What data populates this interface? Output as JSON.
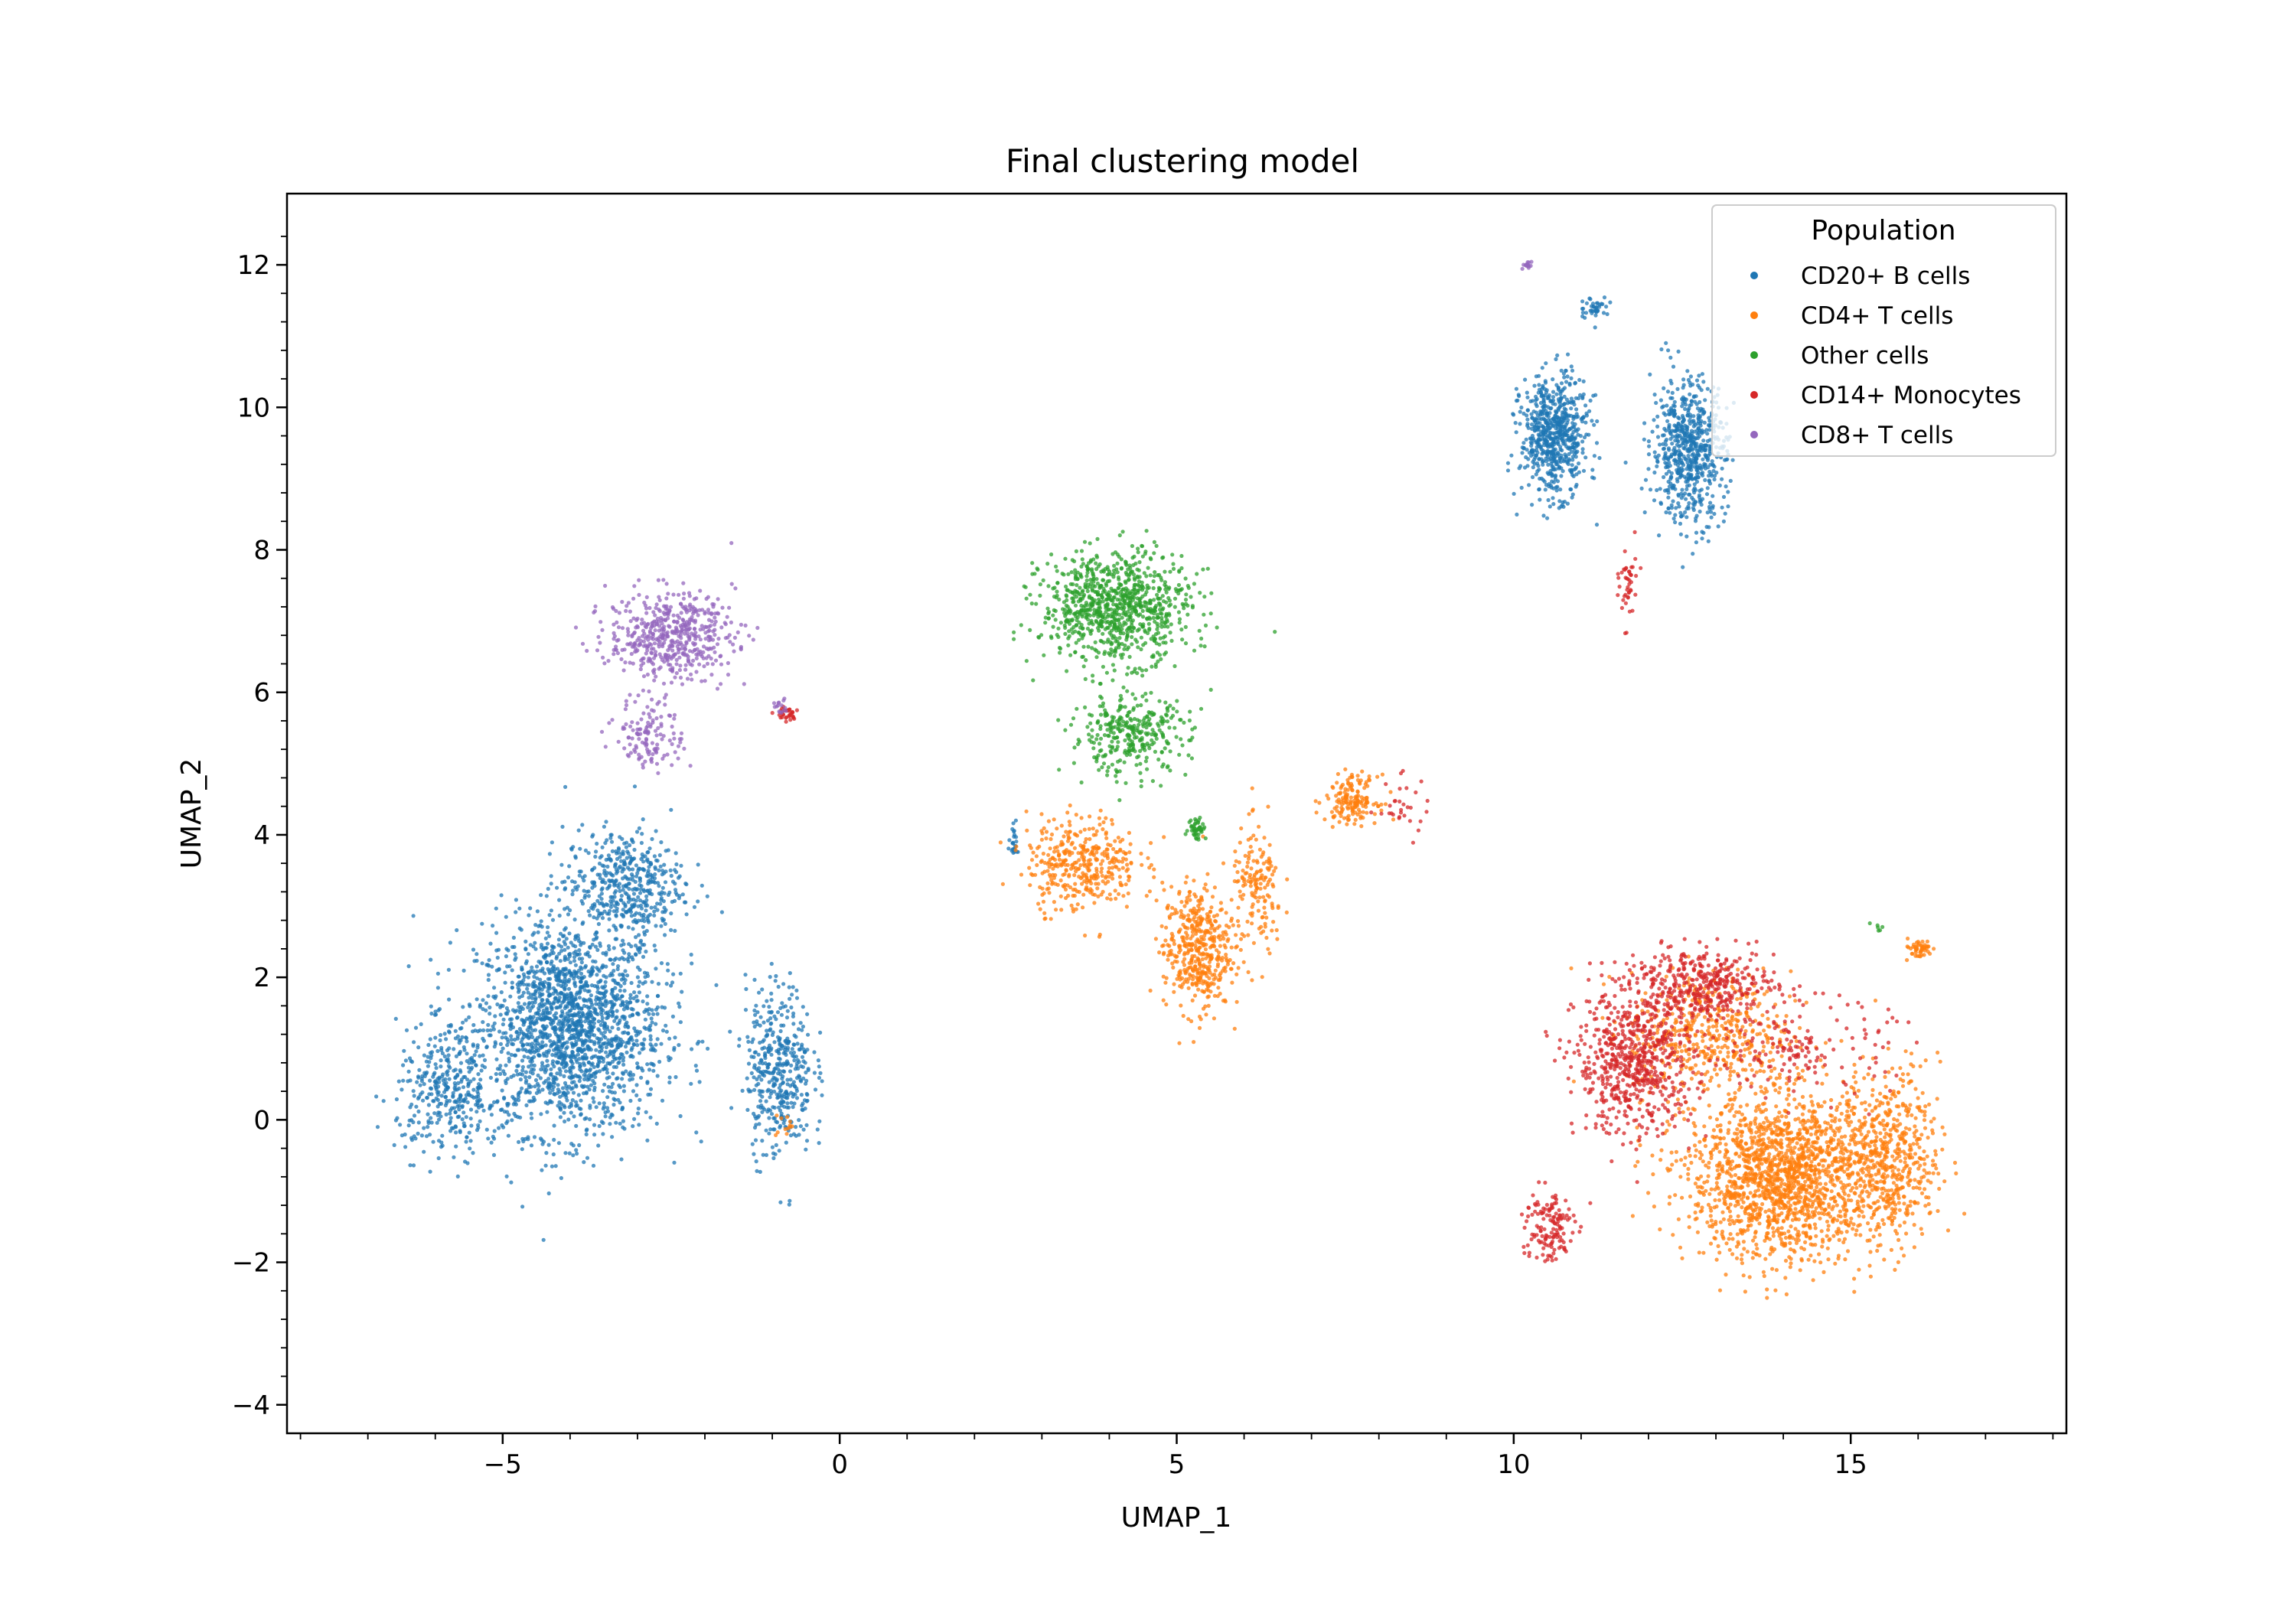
{
  "chart_data": {
    "type": "scatter",
    "title": "Final clustering model",
    "xlabel": "UMAP_1",
    "ylabel": "UMAP_2",
    "xlim": [
      -8.2,
      18.2
    ],
    "ylim": [
      -4.4,
      13.0
    ],
    "xticks": [
      -5,
      0,
      5,
      10,
      15
    ],
    "yticks": [
      -4,
      -2,
      0,
      2,
      4,
      6,
      8,
      10,
      12
    ],
    "xtick_labels": [
      "−5",
      "0",
      "5",
      "10",
      "15"
    ],
    "ytick_labels": [
      "−4",
      "−2",
      "0",
      "2",
      "4",
      "6",
      "8",
      "10",
      "12"
    ],
    "minor_ticks": true,
    "grid": false,
    "legend": {
      "title": "Population",
      "placement": "top-right"
    },
    "series": [
      {
        "name": "CD20+ B cells",
        "color": "#1f77b4",
        "clusters": [
          {
            "center": [
              -4.0,
              1.3
            ],
            "spread": [
              1.25,
              1.35
            ],
            "count": 1900
          },
          {
            "center": [
              -3.2,
              3.3
            ],
            "spread": [
              0.8,
              0.7
            ],
            "count": 450
          },
          {
            "center": [
              -0.9,
              0.7
            ],
            "spread": [
              0.45,
              1.1
            ],
            "count": 420
          },
          {
            "center": [
              -5.8,
              0.4
            ],
            "spread": [
              0.7,
              0.8
            ],
            "count": 350
          },
          {
            "center": [
              10.6,
              9.6
            ],
            "spread": [
              0.45,
              0.75
            ],
            "count": 650
          },
          {
            "center": [
              12.6,
              9.4
            ],
            "spread": [
              0.5,
              0.9
            ],
            "count": 650
          },
          {
            "center": [
              11.2,
              11.4
            ],
            "spread": [
              0.2,
              0.15
            ],
            "count": 40
          },
          {
            "center": [
              2.6,
              3.9
            ],
            "spread": [
              0.08,
              0.2
            ],
            "count": 25
          }
        ]
      },
      {
        "name": "CD4+ T cells",
        "color": "#ff7f0e",
        "clusters": [
          {
            "center": [
              14.0,
              -0.8
            ],
            "spread": [
              1.3,
              1.05
            ],
            "count": 1700
          },
          {
            "center": [
              15.6,
              -0.5
            ],
            "spread": [
              0.65,
              1.1
            ],
            "count": 500
          },
          {
            "center": [
              12.9,
              1.2
            ],
            "spread": [
              1.1,
              0.8
            ],
            "count": 450
          },
          {
            "center": [
              16.0,
              2.4
            ],
            "spread": [
              0.2,
              0.12
            ],
            "count": 50
          },
          {
            "center": [
              5.3,
              2.4
            ],
            "spread": [
              0.45,
              0.8
            ],
            "count": 450
          },
          {
            "center": [
              3.6,
              3.6
            ],
            "spread": [
              0.75,
              0.6
            ],
            "count": 380
          },
          {
            "center": [
              6.2,
              3.2
            ],
            "spread": [
              0.35,
              0.8
            ],
            "count": 160
          },
          {
            "center": [
              7.6,
              4.5
            ],
            "spread": [
              0.35,
              0.3
            ],
            "count": 160
          },
          {
            "center": [
              -0.8,
              -0.1
            ],
            "spread": [
              0.15,
              0.15
            ],
            "count": 12
          }
        ]
      },
      {
        "name": "Other cells",
        "color": "#2ca02c",
        "clusters": [
          {
            "center": [
              4.1,
              7.2
            ],
            "spread": [
              1.0,
              0.7
            ],
            "count": 900
          },
          {
            "center": [
              4.3,
              5.4
            ],
            "spread": [
              0.8,
              0.5
            ],
            "count": 330
          },
          {
            "center": [
              5.3,
              4.1
            ],
            "spread": [
              0.12,
              0.15
            ],
            "count": 45
          },
          {
            "center": [
              15.4,
              2.7
            ],
            "spread": [
              0.1,
              0.05
            ],
            "count": 6
          }
        ]
      },
      {
        "name": "CD14+ Monocytes",
        "color": "#d62728",
        "clusters": [
          {
            "center": [
              11.8,
              0.8
            ],
            "spread": [
              0.8,
              0.9
            ],
            "count": 650
          },
          {
            "center": [
              12.8,
              1.9
            ],
            "spread": [
              1.0,
              0.45
            ],
            "count": 400
          },
          {
            "center": [
              10.5,
              -1.5
            ],
            "spread": [
              0.35,
              0.5
            ],
            "count": 140
          },
          {
            "center": [
              14.3,
              1.0
            ],
            "spread": [
              1.2,
              0.6
            ],
            "count": 160
          },
          {
            "center": [
              11.7,
              7.5
            ],
            "spread": [
              0.12,
              0.5
            ],
            "count": 45
          },
          {
            "center": [
              -0.8,
              5.7
            ],
            "spread": [
              0.15,
              0.1
            ],
            "count": 35
          },
          {
            "center": [
              8.3,
              4.4
            ],
            "spread": [
              0.45,
              0.4
            ],
            "count": 30
          }
        ]
      },
      {
        "name": "CD8+ T cells",
        "color": "#9467bd",
        "clusters": [
          {
            "center": [
              -2.5,
              6.8
            ],
            "spread": [
              0.85,
              0.55
            ],
            "count": 520
          },
          {
            "center": [
              -2.8,
              5.4
            ],
            "spread": [
              0.45,
              0.45
            ],
            "count": 130
          },
          {
            "center": [
              10.2,
              12.0
            ],
            "spread": [
              0.06,
              0.06
            ],
            "count": 15
          },
          {
            "center": [
              -0.9,
              5.8
            ],
            "spread": [
              0.12,
              0.1
            ],
            "count": 15
          }
        ]
      }
    ]
  }
}
